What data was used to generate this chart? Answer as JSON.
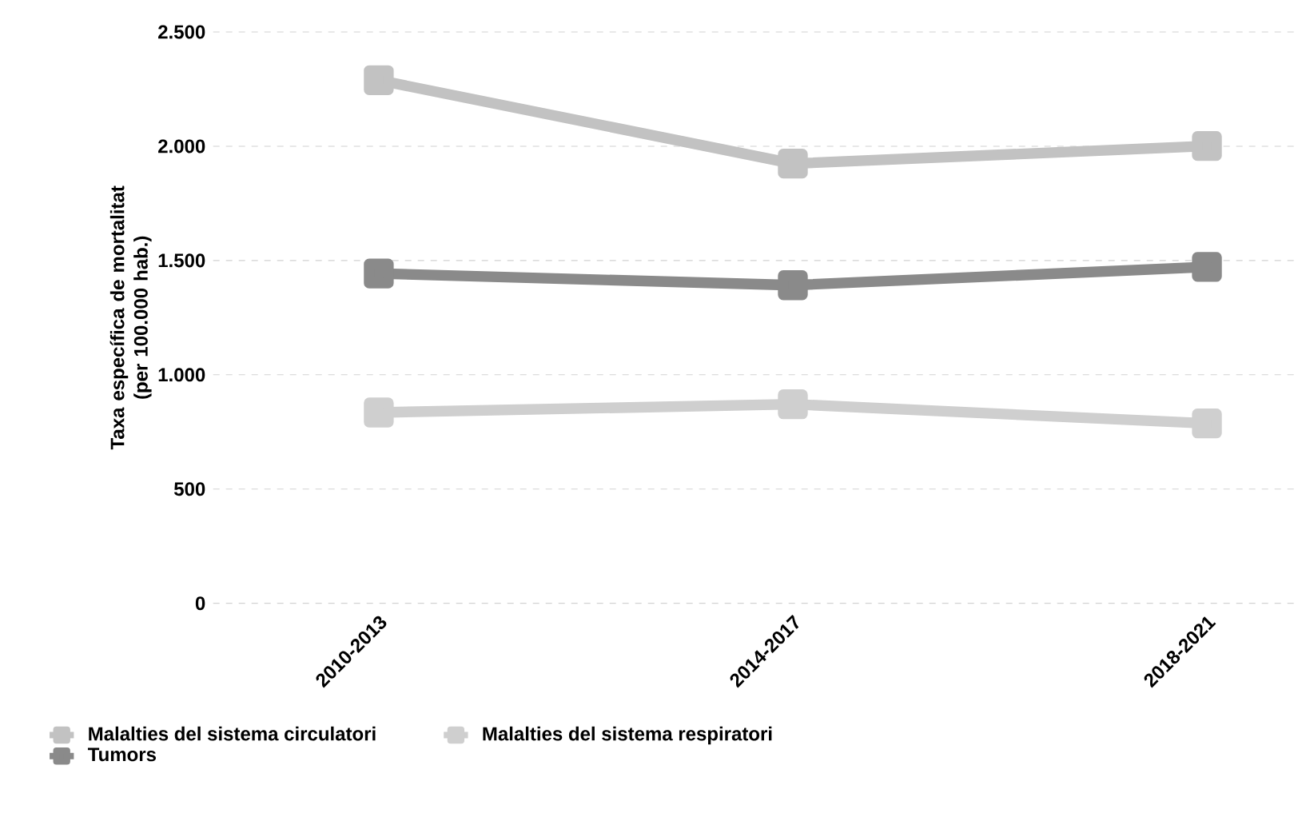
{
  "chart_data": {
    "type": "line",
    "ylabel": "Taxa específica de mortalitat\n(per 100.000 hab.)",
    "categories": [
      "2010-2013",
      "2014-2017",
      "2018-2021"
    ],
    "series": [
      {
        "name": "Malalties del sistema circulatori",
        "color": "#c2c2c2",
        "values": [
          2289,
          1924,
          2001
        ]
      },
      {
        "name": "Malalties del sistema respiratori",
        "color": "#cfcfcf",
        "values": [
          835,
          871,
          787
        ]
      },
      {
        "name": "Tumors",
        "color": "#8a8a8a",
        "values": [
          1443,
          1392,
          1472
        ]
      }
    ],
    "ylim": [
      0,
      2500
    ],
    "yticks": [
      {
        "value": 0,
        "label": "0"
      },
      {
        "value": 500,
        "label": "500"
      },
      {
        "value": 1000,
        "label": "1.000"
      },
      {
        "value": 1500,
        "label": "1.500"
      },
      {
        "value": 2000,
        "label": "2.000"
      },
      {
        "value": 2500,
        "label": "2.500"
      }
    ],
    "grid": "y",
    "legend": "bottom left",
    "marker": "square",
    "line_style": "solid"
  }
}
